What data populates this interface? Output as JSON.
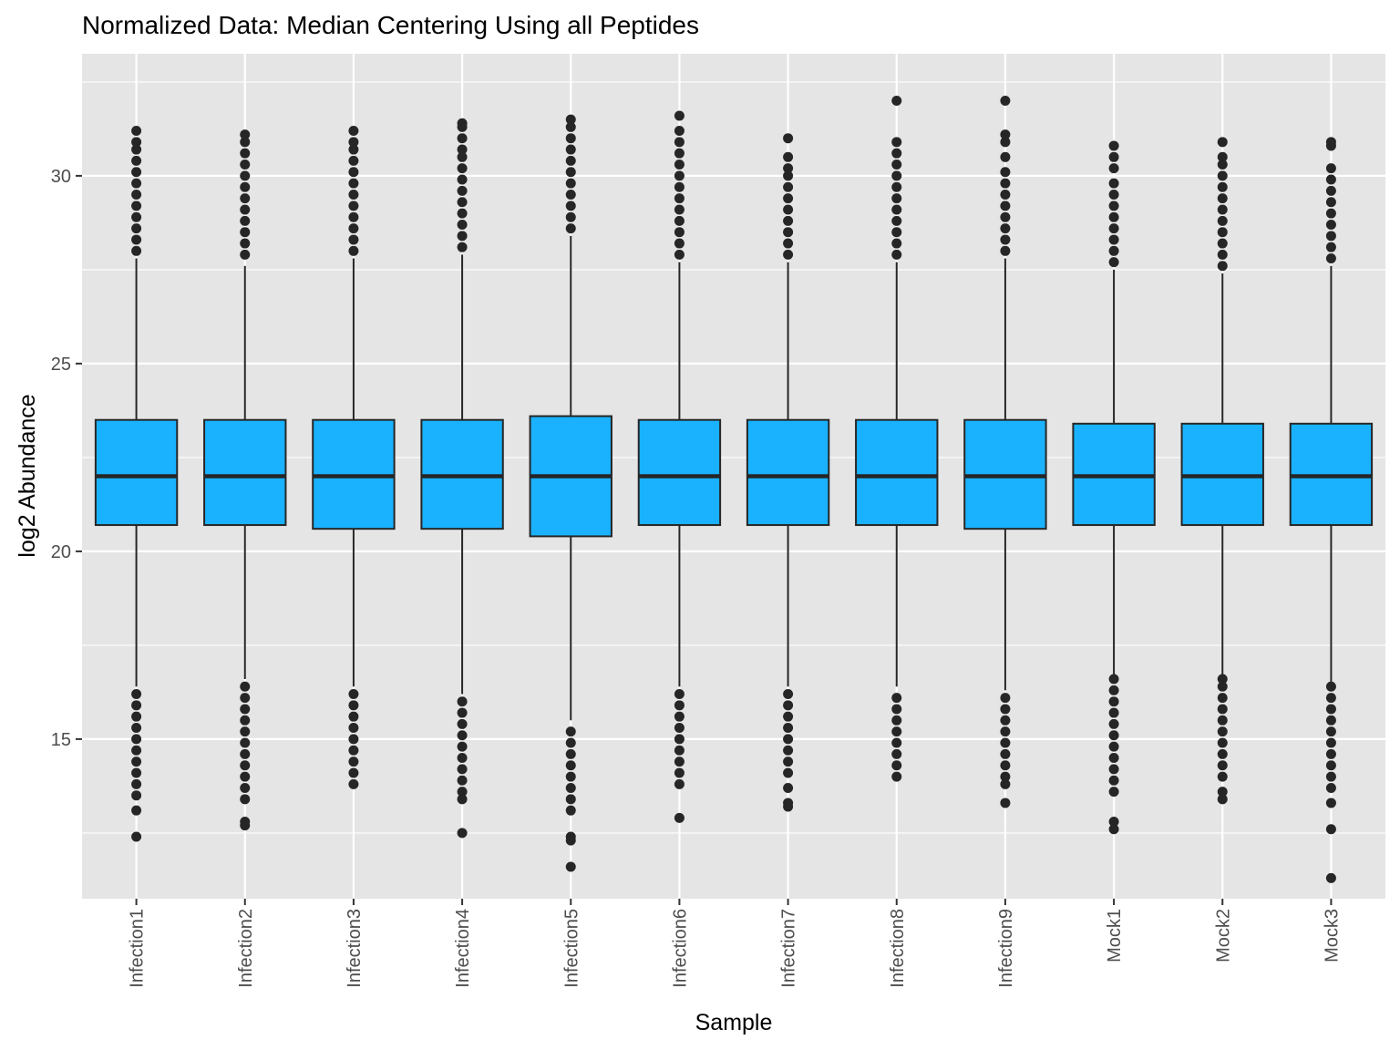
{
  "chart_data": {
    "type": "boxplot",
    "title": "Normalized Data: Median Centering Using all Peptides",
    "xlabel": "Sample",
    "ylabel": "log2 Abundance",
    "ylim": [
      10.75,
      33.25
    ],
    "yticks": [
      15,
      20,
      25,
      30
    ],
    "grid": true,
    "legend": "none",
    "colors": {
      "box_fill": "#1AB2FF",
      "stroke": "#262626",
      "panel": "#E5E5E5",
      "grid": "#FFFFFF",
      "tick_text": "#4D4D4D"
    },
    "categories": [
      "Infection1",
      "Infection2",
      "Infection3",
      "Infection4",
      "Infection5",
      "Infection6",
      "Infection7",
      "Infection8",
      "Infection9",
      "Mock1",
      "Mock2",
      "Mock3"
    ],
    "boxes": [
      {
        "sample": "Infection1",
        "whisker_low": 16.4,
        "q1": 20.7,
        "median": 22.0,
        "q3": 23.5,
        "whisker_high": 27.8,
        "outliers_low": [
          12.4,
          13.1,
          13.5,
          13.8,
          14.1,
          14.4,
          14.7,
          15.0,
          15.3,
          15.6,
          15.9,
          16.2
        ],
        "outliers_high": [
          28.0,
          28.3,
          28.6,
          28.9,
          29.2,
          29.5,
          29.8,
          30.1,
          30.4,
          30.7,
          30.9,
          31.2
        ]
      },
      {
        "sample": "Infection2",
        "whisker_low": 16.6,
        "q1": 20.7,
        "median": 22.0,
        "q3": 23.5,
        "whisker_high": 27.6,
        "outliers_low": [
          12.7,
          12.8,
          13.4,
          13.7,
          14.0,
          14.3,
          14.6,
          14.9,
          15.2,
          15.5,
          15.8,
          16.1,
          16.4
        ],
        "outliers_high": [
          27.9,
          28.2,
          28.5,
          28.8,
          29.1,
          29.4,
          29.7,
          30.0,
          30.3,
          30.6,
          30.9,
          31.1
        ]
      },
      {
        "sample": "Infection3",
        "whisker_low": 16.4,
        "q1": 20.6,
        "median": 22.0,
        "q3": 23.5,
        "whisker_high": 27.8,
        "outliers_low": [
          13.8,
          14.1,
          14.4,
          14.7,
          15.0,
          15.3,
          15.6,
          15.9,
          16.2
        ],
        "outliers_high": [
          28.0,
          28.3,
          28.6,
          28.9,
          29.2,
          29.5,
          29.8,
          30.1,
          30.4,
          30.7,
          30.9,
          31.2
        ]
      },
      {
        "sample": "Infection4",
        "whisker_low": 16.2,
        "q1": 20.6,
        "median": 22.0,
        "q3": 23.5,
        "whisker_high": 27.9,
        "outliers_low": [
          12.5,
          13.4,
          13.6,
          13.9,
          14.2,
          14.5,
          14.8,
          15.1,
          15.4,
          15.7,
          16.0
        ],
        "outliers_high": [
          28.1,
          28.4,
          28.7,
          29.0,
          29.3,
          29.6,
          29.9,
          30.2,
          30.5,
          30.7,
          31.0,
          31.3,
          31.4
        ]
      },
      {
        "sample": "Infection5",
        "whisker_low": 15.5,
        "q1": 20.4,
        "median": 22.0,
        "q3": 23.6,
        "whisker_high": 28.4,
        "outliers_low": [
          11.6,
          12.3,
          12.4,
          13.1,
          13.4,
          13.7,
          14.0,
          14.3,
          14.6,
          14.9,
          15.2
        ],
        "outliers_high": [
          28.6,
          28.9,
          29.2,
          29.5,
          29.8,
          30.1,
          30.4,
          30.7,
          31.0,
          31.3,
          31.5
        ]
      },
      {
        "sample": "Infection6",
        "whisker_low": 16.4,
        "q1": 20.7,
        "median": 22.0,
        "q3": 23.5,
        "whisker_high": 27.7,
        "outliers_low": [
          12.9,
          13.8,
          14.1,
          14.4,
          14.7,
          15.0,
          15.3,
          15.6,
          15.9,
          16.2
        ],
        "outliers_high": [
          27.9,
          28.2,
          28.5,
          28.8,
          29.1,
          29.4,
          29.7,
          30.0,
          30.3,
          30.6,
          30.9,
          31.2,
          31.6
        ]
      },
      {
        "sample": "Infection7",
        "whisker_low": 16.4,
        "q1": 20.7,
        "median": 22.0,
        "q3": 23.5,
        "whisker_high": 27.7,
        "outliers_low": [
          13.2,
          13.3,
          13.7,
          14.1,
          14.4,
          14.7,
          15.0,
          15.3,
          15.6,
          15.9,
          16.2
        ],
        "outliers_high": [
          27.9,
          28.2,
          28.5,
          28.8,
          29.1,
          29.4,
          29.7,
          30.0,
          30.2,
          30.5,
          31.0
        ]
      },
      {
        "sample": "Infection8",
        "whisker_low": 16.4,
        "q1": 20.7,
        "median": 22.0,
        "q3": 23.5,
        "whisker_high": 27.7,
        "outliers_low": [
          14.0,
          14.3,
          14.6,
          14.9,
          15.2,
          15.5,
          15.8,
          16.1
        ],
        "outliers_high": [
          27.9,
          28.2,
          28.5,
          28.8,
          29.1,
          29.4,
          29.7,
          30.0,
          30.3,
          30.6,
          30.9,
          32.0
        ]
      },
      {
        "sample": "Infection9",
        "whisker_low": 16.3,
        "q1": 20.6,
        "median": 22.0,
        "q3": 23.5,
        "whisker_high": 27.8,
        "outliers_low": [
          13.3,
          13.8,
          14.0,
          14.3,
          14.6,
          14.9,
          15.2,
          15.5,
          15.8,
          16.1
        ],
        "outliers_high": [
          28.0,
          28.3,
          28.6,
          28.9,
          29.2,
          29.5,
          29.8,
          30.1,
          30.5,
          30.9,
          31.1,
          32.0
        ]
      },
      {
        "sample": "Mock1",
        "whisker_low": 16.7,
        "q1": 20.7,
        "median": 22.0,
        "q3": 23.4,
        "whisker_high": 27.5,
        "outliers_low": [
          12.6,
          12.8,
          13.6,
          13.9,
          14.2,
          14.5,
          14.8,
          15.1,
          15.4,
          15.7,
          16.0,
          16.3,
          16.6
        ],
        "outliers_high": [
          27.7,
          28.0,
          28.3,
          28.6,
          28.9,
          29.2,
          29.5,
          29.8,
          30.2,
          30.5,
          30.8
        ]
      },
      {
        "sample": "Mock2",
        "whisker_low": 16.7,
        "q1": 20.7,
        "median": 22.0,
        "q3": 23.4,
        "whisker_high": 27.4,
        "outliers_low": [
          13.4,
          13.6,
          14.0,
          14.3,
          14.6,
          14.9,
          15.2,
          15.5,
          15.8,
          16.1,
          16.4,
          16.6
        ],
        "outliers_high": [
          27.6,
          27.9,
          28.2,
          28.5,
          28.8,
          29.1,
          29.4,
          29.7,
          30.0,
          30.3,
          30.5,
          30.9
        ]
      },
      {
        "sample": "Mock3",
        "whisker_low": 16.5,
        "q1": 20.7,
        "median": 22.0,
        "q3": 23.4,
        "whisker_high": 27.6,
        "outliers_low": [
          11.3,
          12.6,
          13.3,
          13.7,
          14.0,
          14.3,
          14.6,
          14.9,
          15.2,
          15.5,
          15.8,
          16.1,
          16.4
        ],
        "outliers_high": [
          27.8,
          28.1,
          28.4,
          28.7,
          29.0,
          29.3,
          29.6,
          29.9,
          30.2,
          30.8,
          30.9
        ]
      }
    ]
  }
}
